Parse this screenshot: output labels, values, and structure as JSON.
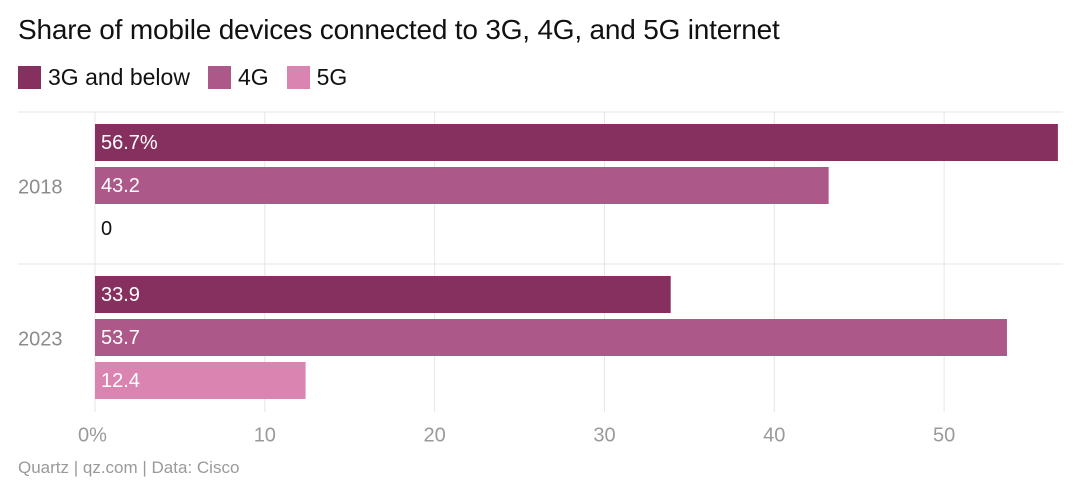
{
  "chart_data": {
    "type": "bar",
    "orientation": "horizontal",
    "title": "Share of mobile devices connected to 3G, 4G, and 5G internet",
    "categories": [
      "2018",
      "2023"
    ],
    "series": [
      {
        "name": "3G and below",
        "values": [
          56.7,
          33.9
        ],
        "labels": [
          "56.7%",
          "33.9"
        ],
        "color": "#86305f"
      },
      {
        "name": "4G",
        "values": [
          43.2,
          53.7
        ],
        "labels": [
          "43.2",
          "53.7"
        ],
        "color": "#ac5888"
      },
      {
        "name": "5G",
        "values": [
          0,
          12.4
        ],
        "labels": [
          "0",
          "12.4"
        ],
        "color": "#da84b2"
      }
    ],
    "xlim": [
      0,
      57
    ],
    "xticks": [
      0,
      10,
      20,
      30,
      40,
      50
    ],
    "xtick_labels": [
      "0%",
      "10",
      "20",
      "30",
      "40",
      "50"
    ],
    "grid": true,
    "legend_position": "top-left"
  },
  "source": "Quartz | qz.com | Data: Cisco"
}
